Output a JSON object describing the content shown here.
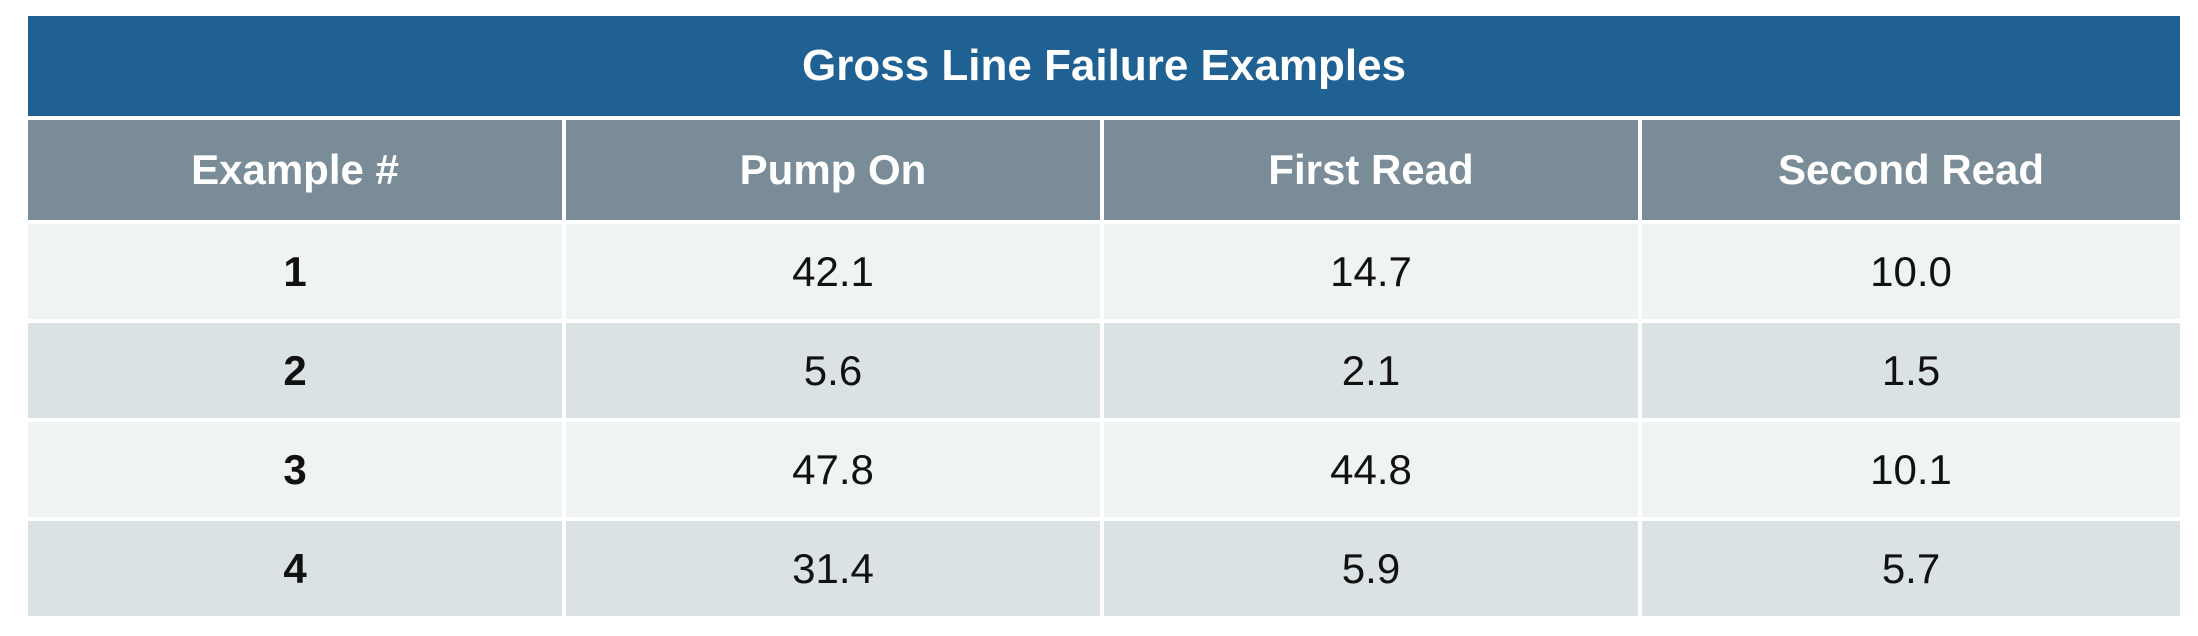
{
  "table": {
    "title": "Gross Line Failure Examples",
    "columns": [
      "Example #",
      "Pump On",
      "First Read",
      "Second Read"
    ],
    "rows": [
      [
        "1",
        "42.1",
        "14.7",
        "10.0"
      ],
      [
        "2",
        "5.6",
        "2.1",
        "1.5"
      ],
      [
        "3",
        "47.8",
        "44.8",
        "10.1"
      ],
      [
        "4",
        "31.4",
        "5.9",
        "5.7"
      ]
    ],
    "colors": {
      "title_bg": "#1f6192",
      "header_bg": "#7a8c98",
      "row_light": "#eff3f4",
      "row_dark": "#dbe2e4"
    }
  }
}
